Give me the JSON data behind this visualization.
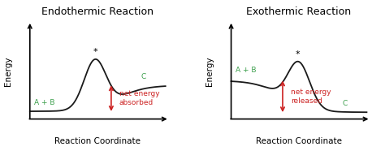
{
  "title_endo": "Endothermic Reaction",
  "title_exo": "Exothermic Reaction",
  "xlabel": "Reaction Coordinate",
  "ylabel": "Energy",
  "bg_color": "#ffffff",
  "curve_color": "#1a1a1a",
  "label_color_green": "#3a9e4a",
  "label_color_red": "#cc2222",
  "title_fontsize": 9.0,
  "axis_label_fontsize": 7.5,
  "annotation_fontsize": 6.5,
  "endo_ab_label": "A + B",
  "endo_c_label": "C",
  "exo_ab_label": "A + B",
  "exo_c_label": "C",
  "endo_net_text": "net energy\nabsorbed",
  "exo_net_text": "net energy\nreleased",
  "star_label": "*"
}
